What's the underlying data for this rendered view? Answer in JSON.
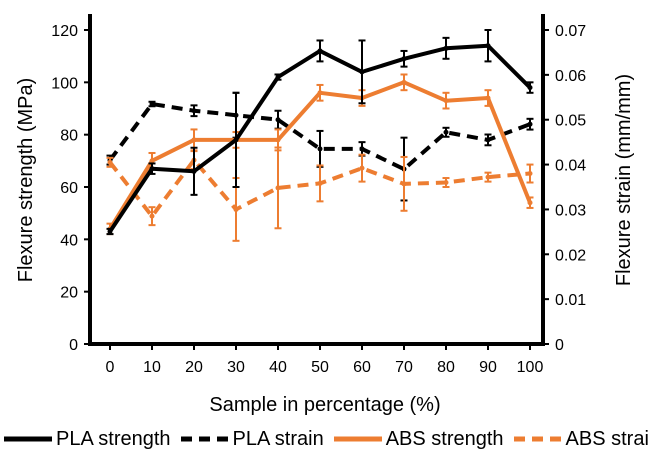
{
  "chart_data": {
    "type": "line",
    "x": [
      0,
      10,
      20,
      30,
      40,
      50,
      60,
      70,
      80,
      90,
      100
    ],
    "xlabel": "Sample in percentage (%)",
    "ylabel": "Flexure strength (MPa)",
    "y2label": "Flexure strain (mm/mm)",
    "ylim": [
      0,
      120
    ],
    "y2lim": [
      0,
      0.07
    ],
    "xticks": [
      "0",
      "10",
      "20",
      "30",
      "40",
      "50",
      "60",
      "70",
      "80",
      "90",
      "100"
    ],
    "yticks": [
      "0",
      "20",
      "40",
      "60",
      "80",
      "100",
      "120"
    ],
    "y2ticks": [
      "0",
      "0.01",
      "0.02",
      "0.03",
      "0.04",
      "0.05",
      "0.06",
      "0.07"
    ],
    "grid": false,
    "legend_position": "bottom",
    "series": [
      {
        "name": "PLA strength",
        "axis": "left",
        "color": "#000000",
        "style": "solid",
        "values": [
          43,
          67,
          66,
          78,
          102,
          112,
          104,
          109,
          113,
          114,
          98
        ],
        "errors": [
          1,
          2,
          9,
          18,
          1,
          4,
          12,
          3,
          4,
          6,
          2
        ]
      },
      {
        "name": "PLA strain",
        "axis": "right",
        "color": "#000000",
        "style": "dashed",
        "values": [
          0.041,
          0.0535,
          0.052,
          0.051,
          0.05,
          0.0435,
          0.0435,
          0.039,
          0.0472,
          0.0455,
          0.049
        ],
        "errors": [
          0.001,
          0.0005,
          0.0012,
          0.005,
          0.002,
          0.004,
          0.0015,
          0.007,
          0.001,
          0.0012,
          0.0012
        ]
      },
      {
        "name": "ABS strength",
        "axis": "left",
        "color": "#ed7d31",
        "style": "solid",
        "values": [
          44,
          70,
          78,
          78,
          78,
          96,
          94,
          100,
          93,
          94,
          54
        ],
        "errors": [
          2,
          3,
          4,
          3,
          4,
          3,
          3,
          3,
          3,
          3,
          2
        ]
      },
      {
        "name": "ABS strain",
        "axis": "right",
        "color": "#ed7d31",
        "style": "dashed",
        "values": [
          0.0405,
          0.0285,
          0.041,
          0.03,
          0.0348,
          0.0358,
          0.0392,
          0.0357,
          0.036,
          0.0372,
          0.038
        ],
        "errors": [
          0.001,
          0.002,
          0.002,
          0.007,
          0.009,
          0.004,
          0.003,
          0.006,
          0.001,
          0.001,
          0.002
        ]
      }
    ]
  }
}
